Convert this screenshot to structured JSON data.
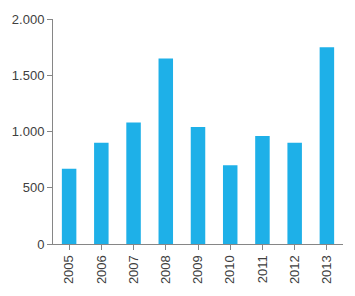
{
  "chart_data": {
    "type": "bar",
    "categories": [
      "2005",
      "2006",
      "2007",
      "2008",
      "2009",
      "2010",
      "2011",
      "2012",
      "2013"
    ],
    "values": [
      670,
      900,
      1080,
      1650,
      1040,
      700,
      960,
      900,
      1750
    ],
    "color": "#1eb0e8",
    "ylim": [
      0,
      2000
    ],
    "yticks": [
      0,
      500,
      {
        "value": 1000,
        "label": "1.000"
      },
      {
        "value": 1500,
        "label": "1.500"
      },
      {
        "value": 2000,
        "label": "2.000"
      }
    ],
    "grid": false
  }
}
